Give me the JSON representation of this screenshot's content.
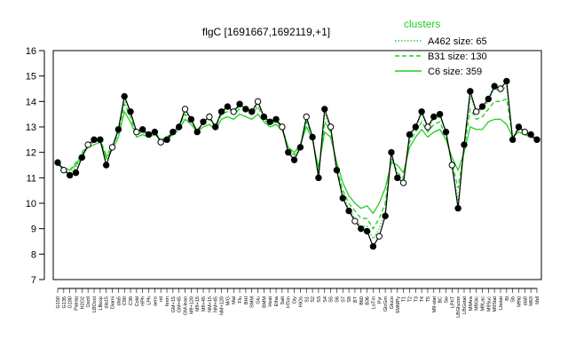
{
  "chart_data": {
    "type": "line",
    "title": "flgC [1691667,1692119,+1]",
    "xlabel": "",
    "ylabel": "",
    "ylim": [
      7,
      16
    ],
    "yticks": [
      7,
      8,
      9,
      10,
      11,
      12,
      13,
      14,
      15,
      16
    ],
    "grid": false,
    "legend": {
      "title": "clusters",
      "placement": "top-right",
      "color": "#22cc22",
      "entries": [
        {
          "label": "A462 size: 65",
          "style": "dotted"
        },
        {
          "label": "B31 size: 130",
          "style": "dashed"
        },
        {
          "label": "C6 size: 359",
          "style": "solid"
        }
      ]
    },
    "categories": [
      "G150",
      "G135",
      "G180",
      "Pairaq",
      "H2O2",
      "Oxctl",
      "LBOxct",
      "LBexp",
      "dia15",
      "Diami",
      "dia5",
      "C90",
      "C30",
      "Cold",
      "HPh",
      "LPh",
      "aero",
      "nit",
      "ferm",
      "GM+15",
      "GM+45",
      "GM-lean",
      "M9+120",
      "M9+15",
      "M9+45",
      "NM+15",
      "NM+45",
      "NM+120",
      "M/G",
      "Mal",
      "Flu",
      "BHI",
      "SMM",
      "Glu",
      "BMM",
      "Heat",
      "Etha",
      "Salt",
      "HTim",
      "Gly",
      "HiOs",
      "S1",
      "S2",
      "S3",
      "S4",
      "S5",
      "S6",
      "S7",
      "S8",
      "BT",
      "B60",
      "B36",
      "LoTm",
      "Pyr",
      "GlcGm",
      "Gluco",
      "SMMPy",
      "T1",
      "T2",
      "T3",
      "T4",
      "T5",
      "M9-stat",
      "BC",
      "Sw",
      "LPhT",
      "LBGlucos",
      "LBGstat",
      "M9Ara",
      "M9Glc",
      "M9Lac",
      "M9Suc",
      "M9Stat",
      "Lbstat",
      "Bl",
      "Sb",
      "M9ld",
      "dia0",
      "M63",
      "Mdl"
    ],
    "x_tick_labels": [
      "G150",
      "G135",
      "G180",
      "Pairaq",
      "H2O2",
      "Oxctl",
      "LBOxct",
      "LBexp",
      "dia15",
      "Diami",
      "dia5",
      "C90",
      "C30",
      "Cold",
      "HPh",
      "LPh",
      "aero",
      "nit",
      "ferm",
      "GM+15",
      "GM+45",
      "GM-lean",
      "M9+120",
      "M9+15",
      "M9+45",
      "NM+15",
      "NM+45",
      "NM+120",
      "M/G",
      "Mal",
      "Flu",
      "BHI",
      "SMM",
      "Glu",
      "BMM",
      "Heat",
      "Etha",
      "Salt",
      "HTim",
      "Gly",
      "HiOs",
      "S1",
      "S2",
      "S3",
      "S4",
      "S5",
      "S6",
      "S7",
      "S8",
      "BT",
      "B60",
      "B36",
      "LoTm",
      "Pyr",
      "GlcGm",
      "Gluco",
      "SMMPy",
      "T1",
      "T2",
      "T3",
      "T4",
      "T5",
      "M9-stat",
      "BC",
      "Sw",
      "LPhT",
      "LBGlucos",
      "LBGstat",
      "M9Ara",
      "M9Glc",
      "M9Lac",
      "M9Suc",
      "M9Stat",
      "Lbstat",
      "Bl",
      "Sb",
      "M9ld",
      "dia0",
      "M63",
      "Mdl"
    ],
    "series": [
      {
        "style": "solid",
        "color": "#000000",
        "points": true,
        "values": [
          11.6,
          11.3,
          11.1,
          11.2,
          11.8,
          12.3,
          12.5,
          12.5,
          11.5,
          12.2,
          12.9,
          14.2,
          13.6,
          12.8,
          12.9,
          12.7,
          12.8,
          12.4,
          12.5,
          12.8,
          13.0,
          13.7,
          13.3,
          12.8,
          13.2,
          13.4,
          13.0,
          13.6,
          13.8,
          13.6,
          13.9,
          13.7,
          13.6,
          14.0,
          13.4,
          13.2,
          13.3,
          13.0,
          12.0,
          11.7,
          12.2,
          13.4,
          12.6,
          11.0,
          13.7,
          13.0,
          11.3,
          10.2,
          9.7,
          9.3,
          9.0,
          8.9,
          8.3,
          8.7,
          9.5,
          12.0,
          11.0,
          10.8,
          12.7,
          13.0,
          13.6,
          13.0,
          13.4,
          13.5,
          12.8,
          11.5,
          9.8,
          12.3,
          14.4,
          13.6,
          13.8,
          14.1,
          14.6,
          14.5,
          14.8,
          12.5,
          13.0,
          12.8,
          12.7,
          12.5
        ]
      },
      {
        "style": "solid",
        "color": "#22cc22",
        "points": false,
        "values": [
          11.5,
          11.4,
          11.3,
          11.5,
          11.9,
          12.2,
          12.3,
          12.4,
          11.8,
          12.1,
          12.6,
          13.6,
          13.2,
          12.6,
          12.7,
          12.6,
          12.7,
          12.5,
          12.5,
          12.7,
          12.9,
          13.3,
          13.1,
          12.8,
          13.0,
          13.1,
          12.9,
          13.3,
          13.4,
          13.3,
          13.5,
          13.4,
          13.3,
          13.5,
          13.2,
          13.0,
          13.1,
          12.9,
          12.2,
          12.0,
          12.3,
          13.0,
          12.5,
          11.4,
          12.8,
          12.6,
          11.6,
          10.8,
          10.3,
          10.0,
          9.8,
          9.9,
          9.6,
          10.0,
          10.6,
          11.6,
          11.5,
          11.2,
          12.2,
          12.6,
          12.9,
          12.6,
          12.8,
          12.9,
          12.5,
          11.8,
          11.3,
          12.0,
          13.0,
          12.9,
          12.9,
          13.2,
          13.3,
          13.3,
          13.1,
          12.6,
          12.8,
          12.7,
          12.6,
          12.5
        ]
      },
      {
        "style": "dashed",
        "color": "#22cc22",
        "points": false,
        "values": [
          11.6,
          11.4,
          11.3,
          11.6,
          12.0,
          12.3,
          12.4,
          12.5,
          11.9,
          12.2,
          12.8,
          13.9,
          13.4,
          12.7,
          12.8,
          12.7,
          12.8,
          12.5,
          12.6,
          12.8,
          13.0,
          13.5,
          13.2,
          12.9,
          13.1,
          13.3,
          13.0,
          13.5,
          13.6,
          13.5,
          13.7,
          13.6,
          13.5,
          13.8,
          13.3,
          13.1,
          13.2,
          13.0,
          12.2,
          11.9,
          12.3,
          13.2,
          12.6,
          11.2,
          13.2,
          12.8,
          11.4,
          10.5,
          10.0,
          9.7,
          9.4,
          9.4,
          9.0,
          9.4,
          10.0,
          11.8,
          11.2,
          11.0,
          12.4,
          12.8,
          13.2,
          12.8,
          13.1,
          13.2,
          12.6,
          11.6,
          10.6,
          12.1,
          13.7,
          13.3,
          13.4,
          13.7,
          14.0,
          14.0,
          14.1,
          12.6,
          12.9,
          12.8,
          12.7,
          12.5
        ]
      },
      {
        "style": "dotted",
        "color": "#22cc22",
        "points": false,
        "values": [
          11.6,
          11.3,
          11.2,
          11.4,
          11.9,
          12.3,
          12.5,
          12.5,
          11.7,
          12.2,
          12.9,
          14.1,
          13.5,
          12.8,
          12.9,
          12.7,
          12.8,
          12.4,
          12.6,
          12.8,
          13.0,
          13.6,
          13.3,
          12.8,
          13.2,
          13.4,
          13.0,
          13.6,
          13.7,
          13.6,
          13.8,
          13.7,
          13.6,
          13.9,
          13.4,
          13.2,
          13.3,
          13.0,
          12.1,
          11.8,
          12.2,
          13.3,
          12.6,
          11.1,
          13.5,
          12.9,
          11.3,
          10.3,
          9.8,
          9.4,
          9.1,
          9.1,
          8.6,
          9.0,
          9.7,
          12.0,
          11.1,
          10.9,
          12.6,
          13.0,
          13.5,
          13.0,
          13.3,
          13.4,
          12.8,
          11.5,
          10.1,
          12.2,
          14.2,
          13.6,
          13.7,
          14.0,
          14.5,
          14.4,
          14.6,
          12.5,
          13.0,
          12.8,
          12.7,
          12.5
        ]
      }
    ]
  }
}
